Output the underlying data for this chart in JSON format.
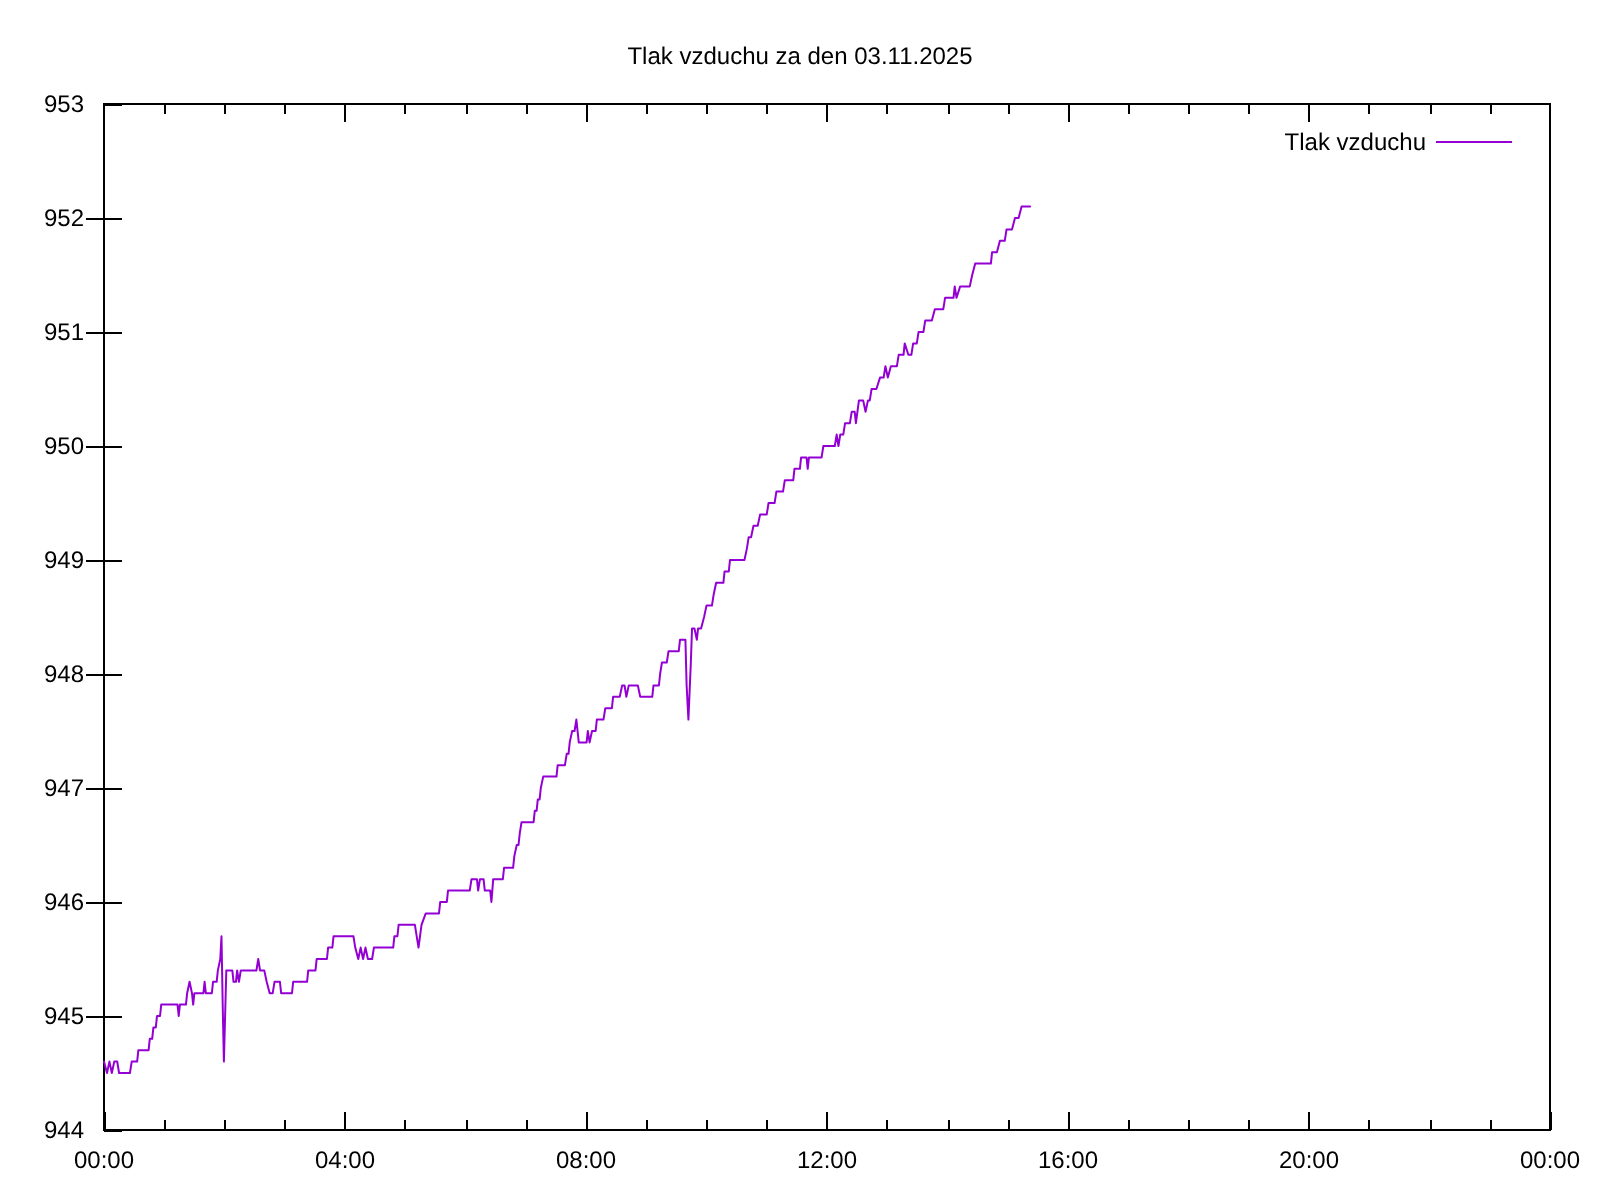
{
  "chart_data": {
    "type": "line",
    "title": "Tlak vzduchu za den 03.11.2025",
    "x": [
      0.0,
      0.05,
      0.09,
      0.13,
      0.17,
      0.22,
      0.25,
      0.43,
      0.46,
      0.55,
      0.57,
      0.74,
      0.76,
      0.8,
      0.82,
      0.86,
      0.88,
      0.93,
      0.95,
      1.22,
      1.24,
      1.26,
      1.36,
      1.38,
      1.42,
      1.46,
      1.48,
      1.5,
      1.65,
      1.67,
      1.69,
      1.79,
      1.81,
      1.87,
      1.89,
      1.93,
      1.95,
      1.97,
      1.99,
      2.01,
      2.03,
      2.13,
      2.15,
      2.19,
      2.21,
      2.24,
      2.27,
      2.53,
      2.56,
      2.59,
      2.66,
      2.7,
      2.75,
      2.8,
      2.83,
      2.92,
      2.94,
      3.12,
      3.14,
      3.37,
      3.39,
      3.51,
      3.53,
      3.7,
      3.72,
      3.79,
      3.81,
      4.14,
      4.17,
      4.22,
      4.26,
      4.3,
      4.34,
      4.38,
      4.45,
      4.48,
      4.8,
      4.82,
      4.87,
      4.89,
      5.16,
      5.22,
      5.27,
      5.34,
      5.56,
      5.58,
      5.69,
      5.71,
      6.07,
      6.1,
      6.19,
      6.21,
      6.24,
      6.3,
      6.32,
      6.41,
      6.43,
      6.46,
      6.62,
      6.64,
      6.79,
      6.81,
      6.83,
      6.85,
      6.88,
      6.9,
      6.91,
      6.93,
      7.13,
      7.15,
      7.18,
      7.2,
      7.23,
      7.25,
      7.27,
      7.29,
      7.51,
      7.53,
      7.65,
      7.68,
      7.71,
      7.73,
      7.75,
      7.77,
      7.81,
      7.84,
      7.88,
      8.01,
      8.03,
      8.06,
      8.1,
      8.16,
      8.18,
      8.29,
      8.32,
      8.43,
      8.45,
      8.56,
      8.6,
      8.64,
      8.67,
      8.71,
      8.86,
      8.9,
      9.1,
      9.12,
      9.21,
      9.23,
      9.26,
      9.34,
      9.37,
      9.54,
      9.56,
      9.65,
      9.67,
      9.7,
      9.74,
      9.76,
      9.8,
      9.84,
      9.86,
      9.91,
      9.96,
      10.0,
      10.09,
      10.12,
      10.16,
      10.28,
      10.3,
      10.37,
      10.39,
      10.63,
      10.67,
      10.7,
      10.74,
      10.78,
      10.85,
      10.89,
      11.0,
      11.03,
      11.13,
      11.16,
      11.27,
      11.3,
      11.44,
      11.46,
      11.55,
      11.57,
      11.66,
      11.68,
      11.7,
      11.91,
      11.94,
      12.13,
      12.16,
      12.19,
      12.22,
      12.27,
      12.3,
      12.38,
      12.41,
      12.46,
      12.48,
      12.53,
      12.6,
      12.64,
      12.68,
      12.71,
      12.74,
      12.82,
      12.88,
      12.94,
      12.97,
      13.01,
      13.06,
      13.16,
      13.19,
      13.27,
      13.29,
      13.35,
      13.4,
      13.43,
      13.49,
      13.52,
      13.6,
      13.63,
      13.74,
      13.79,
      13.93,
      13.96,
      14.1,
      14.12,
      14.15,
      14.21,
      14.37,
      14.41,
      14.46,
      14.72,
      14.74,
      14.82,
      14.87,
      14.95,
      14.98,
      15.07,
      15.12,
      15.18,
      15.23,
      15.37
    ],
    "series": [
      {
        "name": "Tlak vzduchu",
        "color": "#9400d3",
        "values": [
          944.6,
          944.5,
          944.6,
          944.5,
          944.6,
          944.6,
          944.5,
          944.5,
          944.6,
          944.6,
          944.7,
          944.7,
          944.8,
          944.8,
          944.9,
          944.9,
          945.0,
          945.0,
          945.1,
          945.1,
          945.0,
          945.1,
          945.1,
          945.2,
          945.3,
          945.2,
          945.1,
          945.2,
          945.2,
          945.3,
          945.2,
          945.2,
          945.3,
          945.3,
          945.4,
          945.5,
          945.7,
          945.1,
          944.6,
          945.0,
          945.4,
          945.4,
          945.3,
          945.3,
          945.4,
          945.3,
          945.4,
          945.4,
          945.5,
          945.4,
          945.4,
          945.3,
          945.2,
          945.2,
          945.3,
          945.3,
          945.2,
          945.2,
          945.3,
          945.3,
          945.4,
          945.4,
          945.5,
          945.5,
          945.6,
          945.6,
          945.7,
          945.7,
          945.6,
          945.5,
          945.6,
          945.5,
          945.6,
          945.5,
          945.5,
          945.6,
          945.6,
          945.7,
          945.7,
          945.8,
          945.8,
          945.6,
          945.8,
          945.9,
          945.9,
          946.0,
          946.0,
          946.1,
          946.1,
          946.2,
          946.2,
          946.1,
          946.2,
          946.2,
          946.1,
          946.1,
          946.0,
          946.2,
          946.2,
          946.3,
          946.3,
          946.4,
          946.4,
          946.5,
          946.5,
          946.6,
          946.6,
          946.7,
          946.7,
          946.8,
          946.8,
          946.9,
          946.9,
          947.0,
          947.0,
          947.1,
          947.1,
          947.2,
          947.2,
          947.3,
          947.3,
          947.4,
          947.4,
          947.5,
          947.5,
          947.6,
          947.4,
          947.4,
          947.5,
          947.4,
          947.5,
          947.5,
          947.6,
          947.6,
          947.7,
          947.7,
          947.8,
          947.8,
          947.9,
          947.9,
          947.8,
          947.9,
          947.9,
          947.8,
          947.8,
          947.9,
          947.9,
          948.0,
          948.1,
          948.1,
          948.2,
          948.2,
          948.3,
          948.3,
          947.9,
          947.6,
          948.1,
          948.4,
          948.4,
          948.3,
          948.4,
          948.4,
          948.5,
          948.6,
          948.6,
          948.7,
          948.8,
          948.8,
          948.9,
          948.9,
          949.0,
          949.0,
          949.1,
          949.2,
          949.2,
          949.3,
          949.3,
          949.4,
          949.4,
          949.5,
          949.5,
          949.6,
          949.6,
          949.7,
          949.7,
          949.8,
          949.8,
          949.9,
          949.9,
          949.8,
          949.9,
          949.9,
          950.0,
          950.0,
          950.1,
          950.0,
          950.1,
          950.1,
          950.2,
          950.2,
          950.3,
          950.3,
          950.2,
          950.4,
          950.4,
          950.3,
          950.4,
          950.4,
          950.5,
          950.5,
          950.6,
          950.6,
          950.7,
          950.6,
          950.7,
          950.7,
          950.8,
          950.8,
          950.9,
          950.8,
          950.8,
          950.9,
          950.9,
          951.0,
          951.0,
          951.1,
          951.1,
          951.2,
          951.2,
          951.3,
          951.3,
          951.4,
          951.3,
          951.4,
          951.4,
          951.5,
          951.6,
          951.6,
          951.7,
          951.7,
          951.8,
          951.8,
          951.9,
          951.9,
          952.0,
          952.0,
          952.1,
          952.1
        ]
      }
    ],
    "xlim": [
      0,
      24
    ],
    "xticks": [
      {
        "value": 0,
        "label": "00:00"
      },
      {
        "value": 1,
        "label": null
      },
      {
        "value": 2,
        "label": null
      },
      {
        "value": 3,
        "label": null
      },
      {
        "value": 4,
        "label": "04:00"
      },
      {
        "value": 5,
        "label": null
      },
      {
        "value": 6,
        "label": null
      },
      {
        "value": 7,
        "label": null
      },
      {
        "value": 8,
        "label": "08:00"
      },
      {
        "value": 9,
        "label": null
      },
      {
        "value": 10,
        "label": null
      },
      {
        "value": 11,
        "label": null
      },
      {
        "value": 12,
        "label": "12:00"
      },
      {
        "value": 13,
        "label": null
      },
      {
        "value": 14,
        "label": null
      },
      {
        "value": 15,
        "label": null
      },
      {
        "value": 16,
        "label": "16:00"
      },
      {
        "value": 17,
        "label": null
      },
      {
        "value": 18,
        "label": null
      },
      {
        "value": 19,
        "label": null
      },
      {
        "value": 20,
        "label": "20:00"
      },
      {
        "value": 21,
        "label": null
      },
      {
        "value": 22,
        "label": null
      },
      {
        "value": 23,
        "label": null
      },
      {
        "value": 24,
        "label": "00:00"
      }
    ],
    "ylim": [
      944,
      953
    ],
    "yticks": [
      944,
      945,
      946,
      947,
      948,
      949,
      950,
      951,
      952,
      953
    ],
    "legend": "top right",
    "marker": "none",
    "line_style": "solid"
  }
}
